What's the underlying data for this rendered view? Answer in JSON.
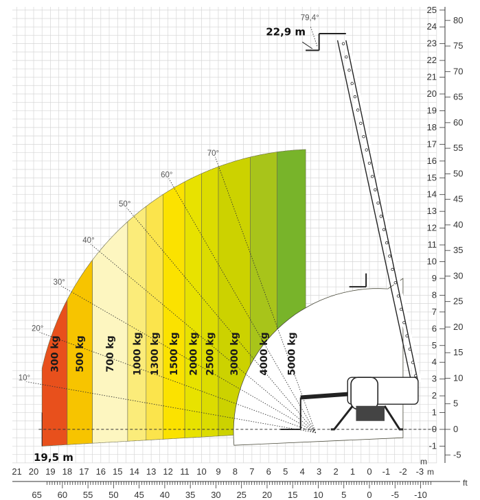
{
  "chart_data": {
    "type": "area",
    "title": "",
    "x_unit_m": "m",
    "x_unit_ft": "ft",
    "xlim_m": [
      21,
      -4
    ],
    "ylim_m": [
      -2,
      25
    ],
    "grid": true,
    "x_ticks_m": [
      "21",
      "20",
      "19",
      "18",
      "17",
      "16",
      "15",
      "14",
      "13",
      "12",
      "11",
      "10",
      "9",
      "8",
      "7",
      "6",
      "5",
      "4",
      "3",
      "2",
      "1",
      "0",
      "-1",
      "-2",
      "-3"
    ],
    "x_ticks_ft": [
      "65",
      "60",
      "55",
      "50",
      "45",
      "40",
      "35",
      "30",
      "25",
      "20",
      "15",
      "10",
      "5",
      "0",
      "-5",
      "-10"
    ],
    "y_ticks_m": [
      "-1",
      "0",
      "1",
      "2",
      "3",
      "4",
      "5",
      "6",
      "7",
      "8",
      "9",
      "10",
      "11",
      "12",
      "13",
      "14",
      "15",
      "16",
      "17",
      "18",
      "19",
      "20",
      "21",
      "22",
      "23",
      "24",
      "25"
    ],
    "y_ticks_ft": [
      "-5",
      "0",
      "5",
      "10",
      "15",
      "20",
      "25",
      "30",
      "35",
      "40",
      "45",
      "50",
      "55",
      "60",
      "65",
      "70",
      "75",
      "80"
    ],
    "max_height_label": "22,9 m",
    "max_outreach_label": "19,5 m",
    "max_angle_label": "79,4°",
    "angle_lines": [
      {
        "label": "10°",
        "angle": 10
      },
      {
        "label": "20°",
        "angle": 20
      },
      {
        "label": "30°",
        "angle": 30
      },
      {
        "label": "40°",
        "angle": 40
      },
      {
        "label": "50°",
        "angle": 50
      },
      {
        "label": "60°",
        "angle": 60
      },
      {
        "label": "70°",
        "angle": 70
      }
    ],
    "load_zones": [
      {
        "label": "300 kg",
        "x_from": 19.5,
        "x_to": 18.0,
        "color": "#e8501c"
      },
      {
        "label": "500 kg",
        "x_from": 18.0,
        "x_to": 16.5,
        "color": "#f7c400"
      },
      {
        "label": "700 kg",
        "x_from": 16.5,
        "x_to": 14.4,
        "color": "#fdf6c0"
      },
      {
        "label": "1000 kg",
        "x_from": 14.4,
        "x_to": 13.3,
        "color": "#fbec7a"
      },
      {
        "label": "1300 kg",
        "x_from": 13.3,
        "x_to": 12.3,
        "color": "#fbe44c"
      },
      {
        "label": "1500 kg",
        "x_from": 12.3,
        "x_to": 11.0,
        "color": "#fbe200"
      },
      {
        "label": "2000 kg",
        "x_from": 11.0,
        "x_to": 10.0,
        "color": "#e8e200"
      },
      {
        "label": "2500 kg",
        "x_from": 10.0,
        "x_to": 9.0,
        "color": "#dcdc00"
      },
      {
        "label": "3000 kg",
        "x_from": 9.0,
        "x_to": 7.1,
        "color": "#ccd200"
      },
      {
        "label": "4000 kg",
        "x_from": 7.1,
        "x_to": 5.5,
        "color": "#a8c41a"
      },
      {
        "label": "5000 kg",
        "x_from": 5.5,
        "x_to": 3.8,
        "color": "#78b42a"
      }
    ]
  }
}
